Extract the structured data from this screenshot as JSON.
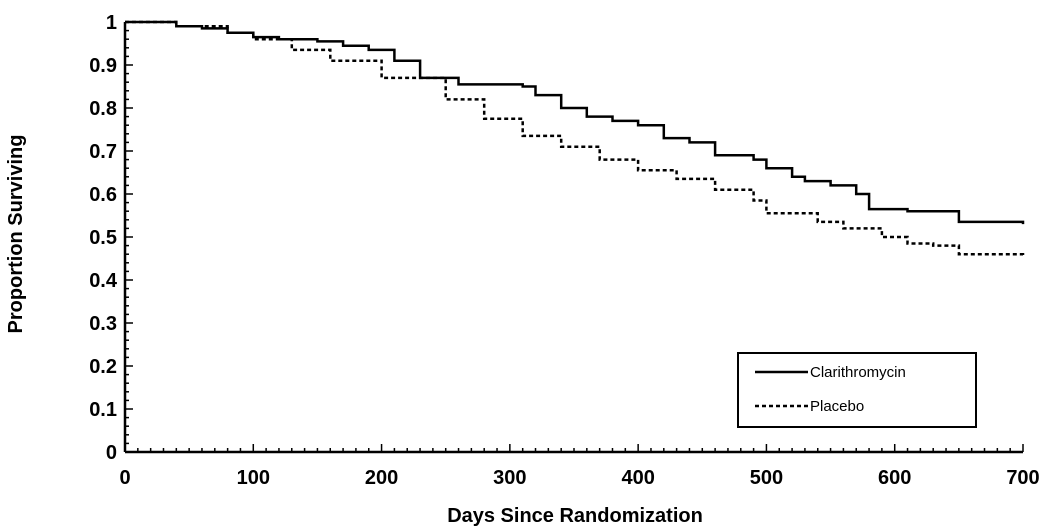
{
  "chart_data": {
    "type": "line",
    "title": "",
    "xlabel": "Days Since Randomization",
    "ylabel": "Proportion Surviving",
    "xlim": [
      0,
      700
    ],
    "ylim": [
      0,
      1
    ],
    "x_ticks": [
      "0",
      "100",
      "200",
      "300",
      "400",
      "500",
      "600",
      "700"
    ],
    "y_ticks": [
      "0",
      "0.1",
      "0.2",
      "0.3",
      "0.4",
      "0.5",
      "0.6",
      "0.7",
      "0.8",
      "0.9",
      "1"
    ],
    "grid": false,
    "legend_position": "bottom-right",
    "series": [
      {
        "name": "Clarithromycin",
        "style": "solid",
        "color": "#000000",
        "points": [
          [
            0,
            1.0
          ],
          [
            40,
            0.99
          ],
          [
            60,
            0.985
          ],
          [
            80,
            0.975
          ],
          [
            100,
            0.965
          ],
          [
            120,
            0.96
          ],
          [
            150,
            0.955
          ],
          [
            170,
            0.945
          ],
          [
            190,
            0.935
          ],
          [
            210,
            0.91
          ],
          [
            230,
            0.87
          ],
          [
            260,
            0.855
          ],
          [
            310,
            0.85
          ],
          [
            320,
            0.83
          ],
          [
            340,
            0.8
          ],
          [
            360,
            0.78
          ],
          [
            380,
            0.77
          ],
          [
            400,
            0.76
          ],
          [
            420,
            0.73
          ],
          [
            440,
            0.72
          ],
          [
            460,
            0.69
          ],
          [
            490,
            0.68
          ],
          [
            500,
            0.66
          ],
          [
            520,
            0.64
          ],
          [
            530,
            0.63
          ],
          [
            550,
            0.62
          ],
          [
            570,
            0.6
          ],
          [
            580,
            0.565
          ],
          [
            610,
            0.56
          ],
          [
            650,
            0.535
          ],
          [
            700,
            0.53
          ]
        ]
      },
      {
        "name": "Placebo",
        "style": "dotted",
        "color": "#000000",
        "points": [
          [
            0,
            1.0
          ],
          [
            40,
            0.99
          ],
          [
            80,
            0.975
          ],
          [
            100,
            0.96
          ],
          [
            130,
            0.935
          ],
          [
            160,
            0.91
          ],
          [
            200,
            0.87
          ],
          [
            250,
            0.82
          ],
          [
            280,
            0.775
          ],
          [
            310,
            0.735
          ],
          [
            340,
            0.71
          ],
          [
            370,
            0.68
          ],
          [
            400,
            0.655
          ],
          [
            430,
            0.635
          ],
          [
            460,
            0.61
          ],
          [
            490,
            0.585
          ],
          [
            500,
            0.555
          ],
          [
            540,
            0.535
          ],
          [
            560,
            0.52
          ],
          [
            590,
            0.5
          ],
          [
            610,
            0.485
          ],
          [
            630,
            0.48
          ],
          [
            650,
            0.46
          ],
          [
            700,
            0.455
          ]
        ]
      }
    ]
  }
}
